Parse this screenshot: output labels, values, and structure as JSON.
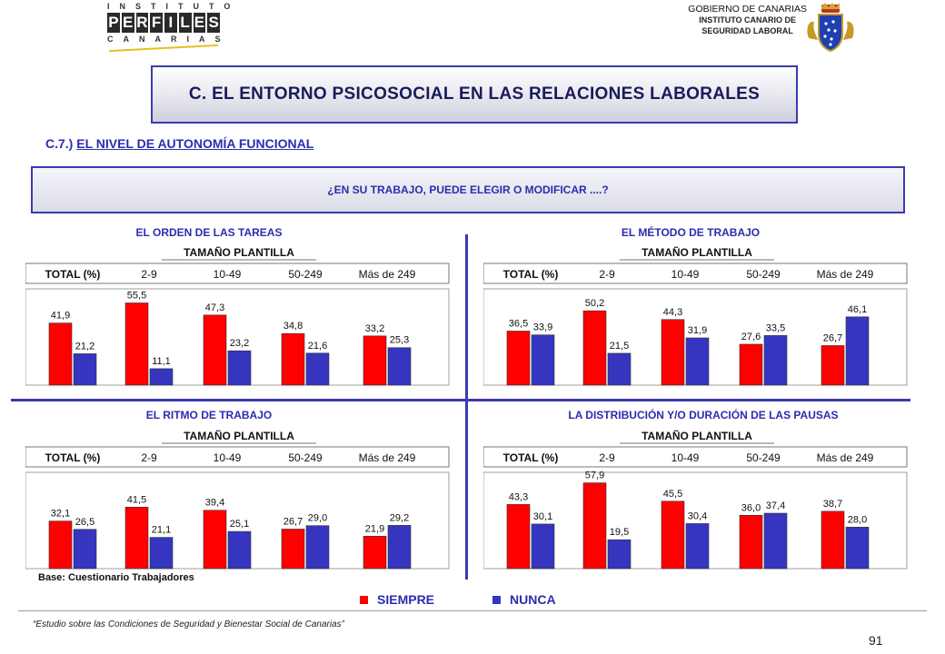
{
  "logo": {
    "top": "INSTITUTO",
    "main": "PERFILES",
    "bottom": "CANARIAS"
  },
  "gov": {
    "line1": "GOBIERNO DE CANARIAS",
    "line2": "INSTITUTO CANARIO DE",
    "line3": "SEGURIDAD LABORAL"
  },
  "title": "C. EL ENTORNO PSICOSOCIAL EN LAS RELACIONES LABORALES",
  "section": {
    "prefix": "C.7.)",
    "label": "EL NIVEL DE AUTONOMÍA FUNCIONAL"
  },
  "question": "¿EN SU TRABAJO, PUEDE ELEGIR O MODIFICAR ....?",
  "base": "Base: Cuestionario Trabajadores",
  "legend": {
    "siempre": "SIEMPRE",
    "nunca": "NUNCA",
    "siempre_color": "#ff0000",
    "nunca_color": "#3535c0"
  },
  "footer": "“Estudio sobre las Condiciones de Seguridad y Bienestar Social de Canarias”",
  "page_number": "91",
  "chart_data": [
    {
      "type": "bar",
      "title": "EL ORDEN DE LAS TAREAS",
      "subtitle": "TAMAÑO PLANTILLA",
      "categories": [
        "TOTAL (%)",
        "2-9",
        "10-49",
        "50-249",
        "Más de 249"
      ],
      "series": [
        {
          "name": "SIEMPRE",
          "values": [
            41.9,
            55.5,
            47.3,
            34.8,
            33.2
          ]
        },
        {
          "name": "NUNCA",
          "values": [
            21.2,
            11.1,
            23.2,
            21.6,
            25.3
          ]
        }
      ],
      "labels": [
        [
          "41,9",
          "55,5",
          "47,3",
          "34,8",
          "33,2"
        ],
        [
          "21,2",
          "11,1",
          "23,2",
          "21,6",
          "25,3"
        ]
      ],
      "ylim": [
        0,
        65
      ]
    },
    {
      "type": "bar",
      "title": "EL MÉTODO DE TRABAJO",
      "subtitle": "TAMAÑO PLANTILLA",
      "categories": [
        "TOTAL (%)",
        "2-9",
        "10-49",
        "50-249",
        "Más de 249"
      ],
      "series": [
        {
          "name": "SIEMPRE",
          "values": [
            36.5,
            50.2,
            44.3,
            27.6,
            26.7
          ]
        },
        {
          "name": "NUNCA",
          "values": [
            33.9,
            21.5,
            31.9,
            33.5,
            46.1
          ]
        }
      ],
      "labels": [
        [
          "36,5",
          "50,2",
          "44,3",
          "27,6",
          "26,7"
        ],
        [
          "33,9",
          "21,5",
          "31,9",
          "33,5",
          "46,1"
        ]
      ],
      "ylim": [
        0,
        65
      ]
    },
    {
      "type": "bar",
      "title": "EL RITMO DE TRABAJO",
      "subtitle": "TAMAÑO PLANTILLA",
      "categories": [
        "TOTAL (%)",
        "2-9",
        "10-49",
        "50-249",
        "Más de 249"
      ],
      "series": [
        {
          "name": "SIEMPRE",
          "values": [
            32.1,
            41.5,
            39.4,
            26.7,
            21.9
          ]
        },
        {
          "name": "NUNCA",
          "values": [
            26.5,
            21.1,
            25.1,
            29.0,
            29.2
          ]
        }
      ],
      "labels": [
        [
          "32,1",
          "41,5",
          "39,4",
          "26,7",
          "21,9"
        ],
        [
          "26,5",
          "21,1",
          "25,1",
          "29,0",
          "29,2"
        ]
      ],
      "ylim": [
        0,
        65
      ]
    },
    {
      "type": "bar",
      "title": "LA DISTRIBUCIÓN Y/O DURACIÓN DE LAS PAUSAS",
      "subtitle": "TAMAÑO PLANTILLA",
      "categories": [
        "TOTAL (%)",
        "2-9",
        "10-49",
        "50-249",
        "Más de 249"
      ],
      "series": [
        {
          "name": "SIEMPRE",
          "values": [
            43.3,
            57.9,
            45.5,
            36.0,
            38.7
          ]
        },
        {
          "name": "NUNCA",
          "values": [
            30.1,
            19.5,
            30.4,
            37.4,
            28.0
          ]
        }
      ],
      "labels": [
        [
          "43,3",
          "57,9",
          "45,5",
          "36,0",
          "38,7"
        ],
        [
          "30,1",
          "19,5",
          "30,4",
          "37,4",
          "28,0"
        ]
      ],
      "ylim": [
        0,
        65
      ]
    }
  ]
}
